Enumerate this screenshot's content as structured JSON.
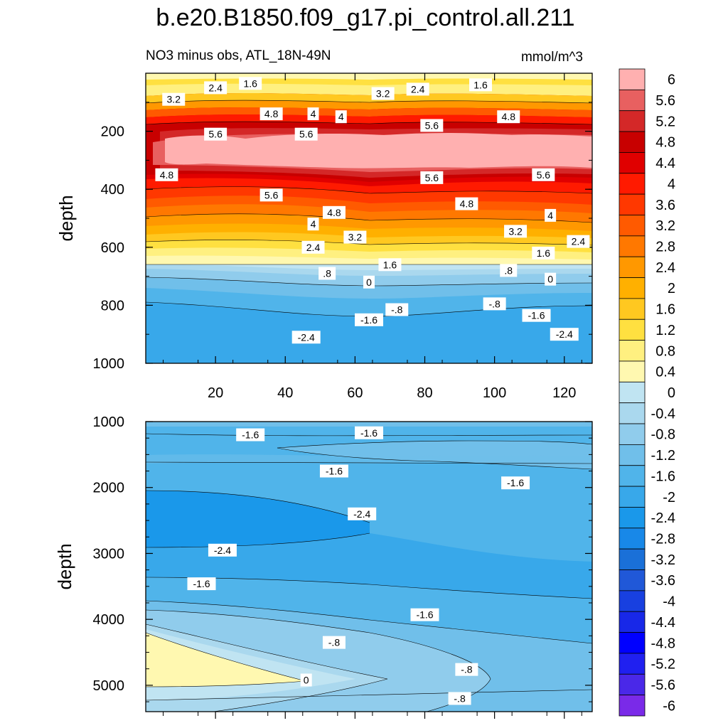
{
  "chart_data": {
    "type": "heatmap",
    "title": "b.e20.B1850.f09_g17.pi_control.all.211",
    "subtitle_left": "NO3 minus obs, ATL_18N-49N",
    "units": "mmol/m^3",
    "colorbar": {
      "levels": [
        "6",
        "5.6",
        "5.2",
        "4.8",
        "4.4",
        "4",
        "3.6",
        "3.2",
        "2.8",
        "2.4",
        "2",
        "1.6",
        "1.2",
        "0.8",
        "0.4",
        "0",
        "-0.4",
        "-0.8",
        "-1.2",
        "-1.6",
        "-2",
        "-2.4",
        "-2.8",
        "-3.2",
        "-3.6",
        "-4",
        "-4.4",
        "-4.8",
        "-5.2",
        "-5.6",
        "-6"
      ],
      "colors": [
        "#FFB0B0",
        "#E86060",
        "#D42828",
        "#C80000",
        "#E00000",
        "#FF1A00",
        "#FF3800",
        "#FF5A00",
        "#FF7800",
        "#FF9800",
        "#FFB000",
        "#FFC820",
        "#FFE040",
        "#FFF080",
        "#FFF8B0",
        "#C0E4F2",
        "#AAD8EE",
        "#90CCEC",
        "#70BFEA",
        "#50B4EA",
        "#38A8EA",
        "#1A98EA",
        "#1888E8",
        "#1A70D8",
        "#2058D8",
        "#1840E0",
        "#1828E8",
        "#0000FF",
        "#2020F0",
        "#4A28E8",
        "#7A2AE8"
      ]
    },
    "top_panel": {
      "ylabel": "depth",
      "ylim": [
        0,
        1000
      ],
      "yticks": [
        "200",
        "400",
        "600",
        "800",
        "1000"
      ],
      "xlim": [
        0,
        128
      ],
      "xticks": [
        "20",
        "40",
        "60",
        "80",
        "100",
        "120"
      ],
      "contour_labels": [
        {
          "text": "3.2",
          "x": 8,
          "y": 90
        },
        {
          "text": "2.4",
          "x": 20,
          "y": 50
        },
        {
          "text": "1.6",
          "x": 30,
          "y": 35
        },
        {
          "text": "4.8",
          "x": 36,
          "y": 140
        },
        {
          "text": "4",
          "x": 48,
          "y": 140
        },
        {
          "text": "4",
          "x": 56,
          "y": 150
        },
        {
          "text": "3.2",
          "x": 68,
          "y": 70
        },
        {
          "text": "2.4",
          "x": 78,
          "y": 55
        },
        {
          "text": "1.6",
          "x": 96,
          "y": 40
        },
        {
          "text": "4.8",
          "x": 104,
          "y": 150
        },
        {
          "text": "5.6",
          "x": 20,
          "y": 210
        },
        {
          "text": "5.6",
          "x": 46,
          "y": 210
        },
        {
          "text": "5.6",
          "x": 82,
          "y": 180
        },
        {
          "text": "4.8",
          "x": 6,
          "y": 350
        },
        {
          "text": "5.6",
          "x": 36,
          "y": 420
        },
        {
          "text": "5.6",
          "x": 82,
          "y": 360
        },
        {
          "text": "5.6",
          "x": 114,
          "y": 350
        },
        {
          "text": "4.8",
          "x": 54,
          "y": 480
        },
        {
          "text": "4.8",
          "x": 92,
          "y": 450
        },
        {
          "text": "4",
          "x": 48,
          "y": 520
        },
        {
          "text": "4",
          "x": 116,
          "y": 490
        },
        {
          "text": "3.2",
          "x": 60,
          "y": 565
        },
        {
          "text": "3.2",
          "x": 106,
          "y": 545
        },
        {
          "text": "2.4",
          "x": 48,
          "y": 600
        },
        {
          "text": "2.4",
          "x": 124,
          "y": 580
        },
        {
          "text": "1.6",
          "x": 70,
          "y": 660
        },
        {
          "text": "1.6",
          "x": 114,
          "y": 620
        },
        {
          "text": ".8",
          "x": 52,
          "y": 690
        },
        {
          "text": ".8",
          "x": 104,
          "y": 680
        },
        {
          "text": "0",
          "x": 64,
          "y": 720
        },
        {
          "text": "0",
          "x": 116,
          "y": 710
        },
        {
          "text": "-.8",
          "x": 72,
          "y": 815
        },
        {
          "text": "-.8",
          "x": 100,
          "y": 795
        },
        {
          "text": "-1.6",
          "x": 64,
          "y": 850
        },
        {
          "text": "-1.6",
          "x": 112,
          "y": 835
        },
        {
          "text": "-2.4",
          "x": 46,
          "y": 910
        },
        {
          "text": "-2.4",
          "x": 120,
          "y": 900
        }
      ]
    },
    "bottom_panel": {
      "ylabel": "depth",
      "ylim": [
        1000,
        5400
      ],
      "yticks": [
        "1000",
        "2000",
        "3000",
        "4000",
        "5000"
      ],
      "xlim": [
        0,
        128
      ],
      "contour_labels": [
        {
          "text": "-1.6",
          "x": 30,
          "y": 1200
        },
        {
          "text": "-1.6",
          "x": 64,
          "y": 1170
        },
        {
          "text": "-1.6",
          "x": 54,
          "y": 1750
        },
        {
          "text": "-1.6",
          "x": 106,
          "y": 1930
        },
        {
          "text": "-2.4",
          "x": 62,
          "y": 2400
        },
        {
          "text": "-2.4",
          "x": 22,
          "y": 2950
        },
        {
          "text": "-1.6",
          "x": 16,
          "y": 3460
        },
        {
          "text": "-1.6",
          "x": 80,
          "y": 3930
        },
        {
          "text": "-.8",
          "x": 54,
          "y": 4350
        },
        {
          "text": "-.8",
          "x": 92,
          "y": 4760
        },
        {
          "text": "0",
          "x": 46,
          "y": 4920
        },
        {
          "text": "-.8",
          "x": 90,
          "y": 5200
        }
      ]
    }
  }
}
